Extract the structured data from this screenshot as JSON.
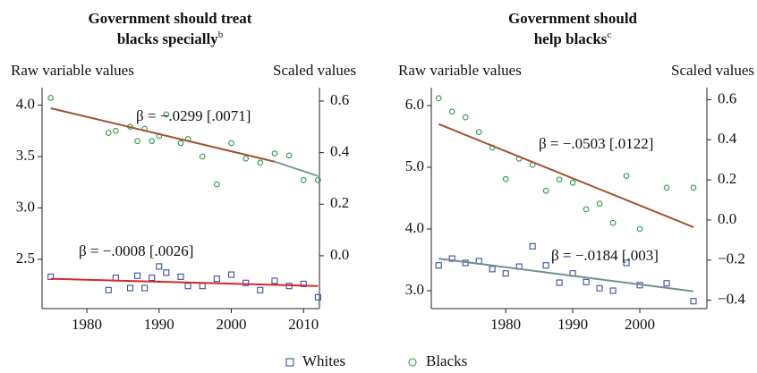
{
  "chart_data": [
    {
      "type": "scatter",
      "title": [
        "Government should treat",
        "blacks specially"
      ],
      "title_note": "b",
      "y_label": "Raw variable values",
      "y2_label": "Scaled values",
      "xlim": [
        1973.8,
        2012.2
      ],
      "xticks": [
        1980,
        1990,
        2000,
        2010
      ],
      "ylim": [
        2.02,
        4.17
      ],
      "yticks": [
        2.5,
        {
          "value": 3,
          "label": "3.0"
        },
        3.5,
        {
          "value": 4,
          "label": "4.0"
        }
      ],
      "y2lim": [
        -0.205,
        0.652
      ],
      "y2ticks": [
        {
          "value": 0,
          "label": "0.0"
        },
        0.2,
        0.4,
        0.6
      ],
      "series": [
        {
          "name": "Whites",
          "color": "#3a4fa0",
          "marker": "square",
          "x": [
            1975,
            1983,
            1984,
            1986,
            1987,
            1988,
            1989,
            1990,
            1991,
            1993,
            1994,
            1996,
            1998,
            2000,
            2002,
            2004,
            2006,
            2008,
            2010,
            2012
          ],
          "values": [
            2.33,
            2.2,
            2.32,
            2.22,
            2.34,
            2.22,
            2.32,
            2.43,
            2.37,
            2.33,
            2.24,
            2.24,
            2.31,
            2.35,
            2.27,
            2.2,
            2.29,
            2.24,
            2.26,
            2.13
          ]
        },
        {
          "name": "Blacks",
          "color": "#2e9b4e",
          "marker": "circle",
          "x": [
            1975,
            1983,
            1984,
            1986,
            1987,
            1988,
            1989,
            1990,
            1991,
            1993,
            1994,
            1996,
            1998,
            2000,
            2002,
            2004,
            2006,
            2008,
            2010,
            2012
          ],
          "values": [
            4.07,
            3.73,
            3.75,
            3.79,
            3.65,
            3.77,
            3.65,
            3.7,
            3.91,
            3.63,
            3.67,
            3.5,
            3.23,
            3.63,
            3.48,
            3.44,
            3.53,
            3.51,
            3.27,
            3.27
          ]
        }
      ],
      "fits": [
        {
          "color": "#a0522d",
          "x": [
            1975,
            2006
          ],
          "values": [
            3.97,
            3.45
          ]
        },
        {
          "color": "#7f9a9a",
          "x": [
            2006,
            2012
          ],
          "values": [
            3.45,
            3.31
          ]
        },
        {
          "color": "#d62728",
          "x": [
            1975,
            2012
          ],
          "values": [
            2.31,
            2.24
          ]
        }
      ],
      "annotations": [
        "β = −.0299 [.0071]",
        "β = −.0008 [.0026]"
      ]
    },
    {
      "type": "scatter",
      "title": [
        "Government should",
        "help blacks"
      ],
      "title_note": "c",
      "y_label": "Raw variable values",
      "y2_label": "Scaled values",
      "xlim": [
        1968.9,
        2010.0
      ],
      "xticks": [
        1980,
        1990,
        2000
      ],
      "ylim": [
        2.71,
        6.29
      ],
      "yticks": [
        {
          "value": 3,
          "label": "3.0"
        },
        {
          "value": 4,
          "label": "4.0"
        },
        {
          "value": 5,
          "label": "5.0"
        },
        {
          "value": 6,
          "label": "6.0"
        }
      ],
      "y2lim": [
        -0.442,
        0.66
      ],
      "y2ticks": [
        {
          "value": -0.4,
          "label": "−0.4"
        },
        {
          "value": -0.2,
          "label": "−0.2"
        },
        {
          "value": 0,
          "label": "0.0"
        },
        0.2,
        0.4,
        0.6
      ],
      "series": [
        {
          "name": "Whites",
          "color": "#3a4fa0",
          "marker": "square",
          "x": [
            1970,
            1972,
            1974,
            1976,
            1978,
            1980,
            1982,
            1984,
            1986,
            1988,
            1990,
            1992,
            1994,
            1996,
            1998,
            2000,
            2004,
            2008
          ],
          "values": [
            3.41,
            3.52,
            3.45,
            3.48,
            3.35,
            3.28,
            3.39,
            3.72,
            3.41,
            3.13,
            3.28,
            3.14,
            3.04,
            3.0,
            3.45,
            3.09,
            3.12,
            2.83
          ]
        },
        {
          "name": "Blacks",
          "color": "#2e9b4e",
          "marker": "circle",
          "x": [
            1970,
            1972,
            1974,
            1976,
            1978,
            1980,
            1982,
            1984,
            1986,
            1988,
            1990,
            1992,
            1994,
            1996,
            1998,
            2000,
            2004,
            2008
          ],
          "values": [
            6.12,
            5.9,
            5.81,
            5.57,
            5.32,
            4.81,
            5.14,
            5.04,
            4.62,
            4.8,
            4.75,
            4.32,
            4.41,
            4.1,
            4.86,
            4.0,
            4.67,
            4.67
          ]
        }
      ],
      "fits": [
        {
          "color": "#a0522d",
          "x": [
            1970,
            2008
          ],
          "values": [
            5.7,
            4.03
          ]
        },
        {
          "color": "#6f8f8f",
          "x": [
            1970,
            2008
          ],
          "values": [
            3.52,
            2.99
          ]
        }
      ],
      "annotations": [
        "β = −.0503 [.0122]",
        "β = −.0184 [.003]"
      ]
    }
  ]
}
